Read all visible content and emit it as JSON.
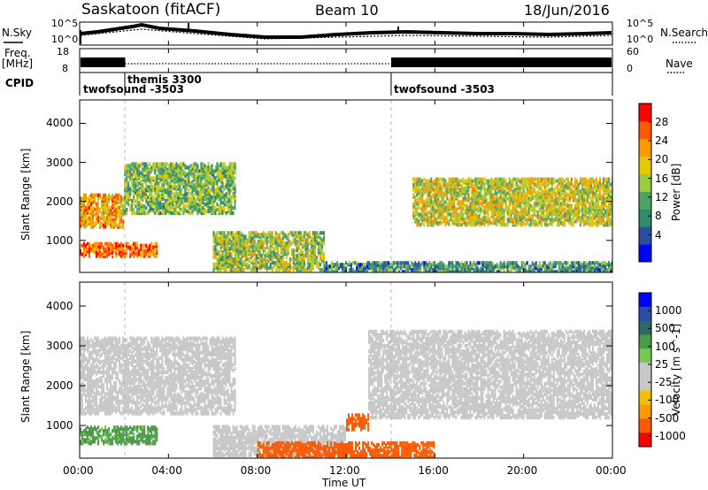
{
  "header": {
    "site": "Saskatoon (fitACF)",
    "beam": "Beam 10",
    "date": "18/Jun/2016"
  },
  "strip": {
    "nsky_label": "N.Sky",
    "nsearch_label": "N.Search",
    "noise_ticks_left": [
      "10^5",
      "10^0"
    ],
    "noise_ticks_right": [
      "10^5",
      "10^0"
    ],
    "freq_label": "Freq.",
    "freq_unit": "[MHz]",
    "freq_ticks": [
      "18",
      "8"
    ],
    "nave_label": "Nave",
    "nave_ticks": [
      "60",
      "0"
    ],
    "cpid_label": "CPID",
    "cpid_segments": [
      {
        "name": "twofsound -3503",
        "start_hour": 0.0,
        "end_hour": 2.0
      },
      {
        "name": "themis 3300",
        "start_hour": 2.0,
        "end_hour": 14.0
      },
      {
        "name": "twofsound -3503",
        "start_hour": 14.0,
        "end_hour": 24.0
      }
    ]
  },
  "colors": {
    "power_scale": [
      "#0000ff",
      "#2a4ea0",
      "#2e8b6e",
      "#4fa36a",
      "#9ccc3c",
      "#e6c800",
      "#ff9900",
      "#ff5a00",
      "#ff0000"
    ],
    "velocity_scale": [
      "#ff0000",
      "#ff5a00",
      "#ff9900",
      "#f0c000",
      "#c8c8c8",
      "#c8c8c8",
      "#78c850",
      "#4a9a46",
      "#2a6a6a",
      "#2a4ea0",
      "#0000ff"
    ],
    "ground_scatter": "#c8c8c8"
  },
  "chart_data": [
    {
      "type": "heatmap",
      "panel": "power",
      "ylabel": "Slant Range [km]",
      "xlabel": "",
      "ylim": [
        180,
        4600
      ],
      "xlim": [
        0,
        24
      ],
      "xticks": [
        "00:00",
        "04:00",
        "08:00",
        "12:00",
        "16:00",
        "20:00",
        "00:00"
      ],
      "yticks": [
        1000,
        2000,
        3000,
        4000
      ],
      "colorbar_label": "Power [dB]",
      "colorbar_ticks": [
        "28",
        "24",
        "20",
        "16",
        "12",
        "8",
        "4"
      ],
      "colorbar_range": [
        0,
        32
      ],
      "regions": [
        {
          "t0": 0.0,
          "t1": 2.0,
          "r0": 1350,
          "r1": 2200,
          "level": 22
        },
        {
          "t0": 0.0,
          "t1": 3.5,
          "r0": 600,
          "r1": 950,
          "level": 26
        },
        {
          "t0": 2.0,
          "t1": 7.0,
          "r0": 1700,
          "r1": 3000,
          "level": 14
        },
        {
          "t0": 6.0,
          "t1": 11.0,
          "r0": 250,
          "r1": 1200,
          "level": 16
        },
        {
          "t0": 11.0,
          "t1": 24.0,
          "r0": 200,
          "r1": 450,
          "level": 10
        },
        {
          "t0": 15.0,
          "t1": 24.0,
          "r0": 1400,
          "r1": 2600,
          "level": 18
        }
      ]
    },
    {
      "type": "heatmap",
      "panel": "velocity",
      "ylabel": "Slant Range [km]",
      "xlabel": "Time UT",
      "ylim": [
        180,
        4600
      ],
      "xlim": [
        0,
        24
      ],
      "xticks": [
        "00:00",
        "04:00",
        "08:00",
        "12:00",
        "16:00",
        "20:00",
        "00:00"
      ],
      "yticks": [
        1000,
        2000,
        3000,
        4000
      ],
      "colorbar_label": "Velocity [m s^-1]",
      "colorbar_ticks": [
        "1000",
        "500",
        "100",
        "25",
        "-25",
        "-100",
        "-500",
        "-1000"
      ],
      "regions": [
        {
          "t0": 0.0,
          "t1": 7.0,
          "r0": 1300,
          "r1": 3200,
          "kind": "ground"
        },
        {
          "t0": 0.0,
          "t1": 3.5,
          "r0": 550,
          "r1": 1000,
          "velocity": 150
        },
        {
          "t0": 6.0,
          "t1": 12.0,
          "r0": 250,
          "r1": 1000,
          "kind": "ground"
        },
        {
          "t0": 8.0,
          "t1": 16.0,
          "r0": 200,
          "r1": 600,
          "velocity": -200
        },
        {
          "t0": 12.0,
          "t1": 13.0,
          "r0": 900,
          "r1": 1300,
          "velocity": -300
        },
        {
          "t0": 13.0,
          "t1": 24.0,
          "r0": 1200,
          "r1": 3400,
          "kind": "ground"
        }
      ]
    }
  ]
}
